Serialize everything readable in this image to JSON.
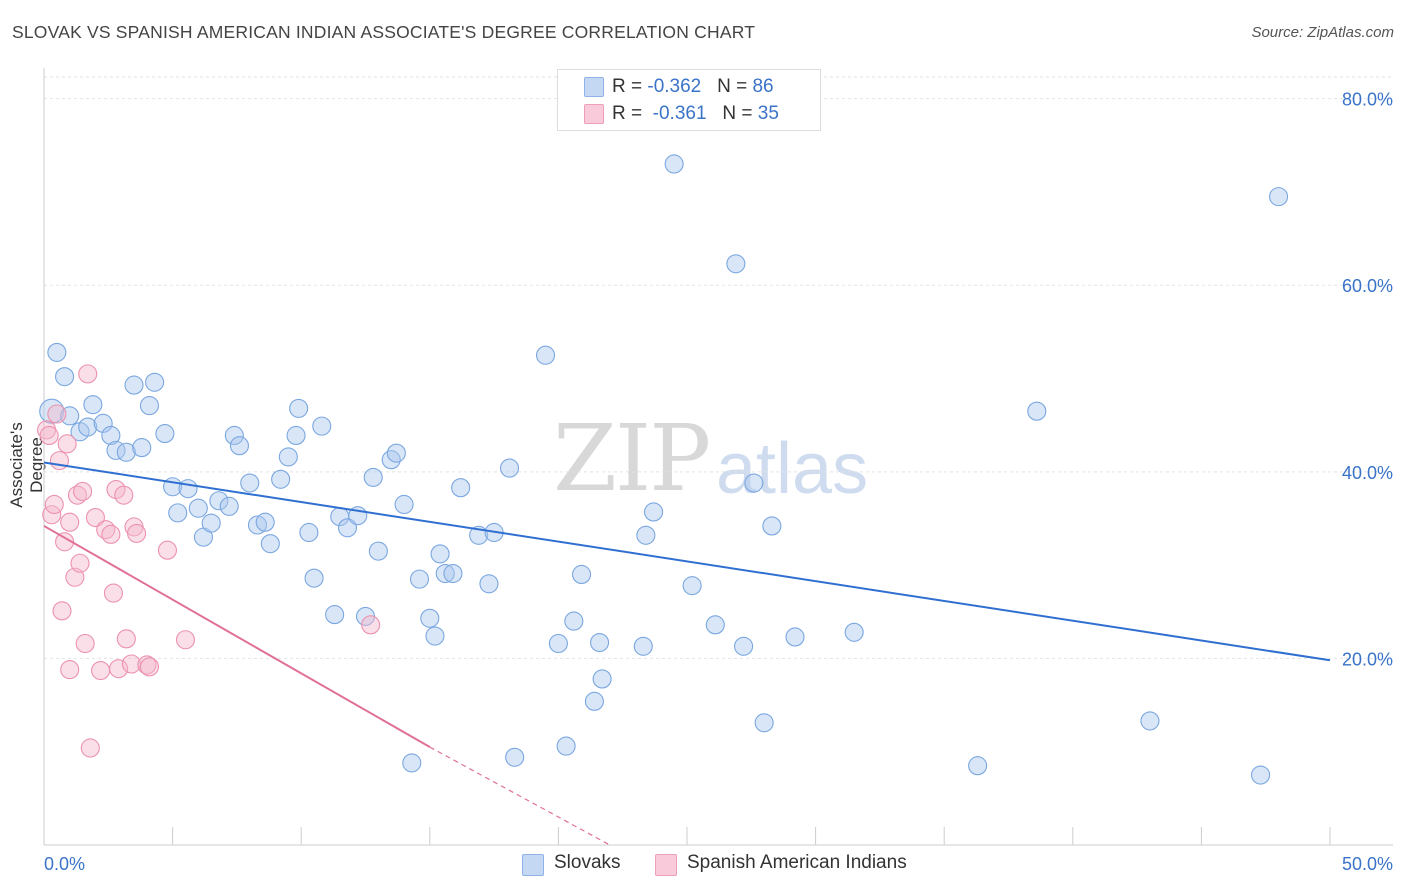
{
  "title": "SLOVAK VS SPANISH AMERICAN INDIAN ASSOCIATE'S DEGREE CORRELATION CHART",
  "source": "Source: ZipAtlas.com",
  "watermark": {
    "zip": "ZIP",
    "atlas": "atlas"
  },
  "legend_top": [
    {
      "r_label": "R = ",
      "r_value": "-0.362",
      "n_label": "N = ",
      "n_value": "86",
      "color": "#aac8f0"
    },
    {
      "r_label": "R = ",
      "r_value": "-0.361",
      "n_label": "N = ",
      "n_value": "35",
      "color": "#f5b8cb"
    }
  ],
  "legend_bottom": [
    {
      "label": "Slovaks",
      "color": "#aac8f0"
    },
    {
      "label": "Spanish American Indians",
      "color": "#f5b8cb"
    }
  ],
  "chart_data": {
    "type": "scatter",
    "ylabel": "Associate's Degree",
    "xlim": [
      0,
      50
    ],
    "ylim": [
      0,
      82
    ],
    "x_tick_labels": [
      "0.0%",
      "50.0%"
    ],
    "y_ticks": [
      20,
      40,
      60,
      80
    ],
    "y_tick_labels": [
      "20.0%",
      "40.0%",
      "60.0%",
      "80.0%"
    ],
    "grid": true,
    "series": [
      {
        "name": "Slovaks",
        "color": "#7aa7e0",
        "fill": "#aac8f0",
        "trend": {
          "x": [
            0,
            50
          ],
          "y": [
            41.0,
            19.8
          ],
          "color": "#2f6fd0"
        },
        "points": [
          [
            0.3,
            46.5
          ],
          [
            0.5,
            52.8
          ],
          [
            0.8,
            50.2
          ],
          [
            1.0,
            46.0
          ],
          [
            1.4,
            44.3
          ],
          [
            1.7,
            44.8
          ],
          [
            1.9,
            47.2
          ],
          [
            2.3,
            45.2
          ],
          [
            2.6,
            43.9
          ],
          [
            2.8,
            42.3
          ],
          [
            3.2,
            42.1
          ],
          [
            3.5,
            49.3
          ],
          [
            3.8,
            42.6
          ],
          [
            4.1,
            47.1
          ],
          [
            4.3,
            49.6
          ],
          [
            4.7,
            44.1
          ],
          [
            5.0,
            38.4
          ],
          [
            5.2,
            35.6
          ],
          [
            5.6,
            38.2
          ],
          [
            6.0,
            36.1
          ],
          [
            6.2,
            33.0
          ],
          [
            6.5,
            34.5
          ],
          [
            6.8,
            36.9
          ],
          [
            7.2,
            36.3
          ],
          [
            7.4,
            43.9
          ],
          [
            7.6,
            42.8
          ],
          [
            8.0,
            38.8
          ],
          [
            8.3,
            34.3
          ],
          [
            8.6,
            34.6
          ],
          [
            8.8,
            32.3
          ],
          [
            9.2,
            39.2
          ],
          [
            9.5,
            41.6
          ],
          [
            9.8,
            43.9
          ],
          [
            9.9,
            46.8
          ],
          [
            10.3,
            33.5
          ],
          [
            10.5,
            28.6
          ],
          [
            10.8,
            44.9
          ],
          [
            11.3,
            24.7
          ],
          [
            11.5,
            35.2
          ],
          [
            11.8,
            34.0
          ],
          [
            12.2,
            35.3
          ],
          [
            12.5,
            24.5
          ],
          [
            12.8,
            39.4
          ],
          [
            13.0,
            31.5
          ],
          [
            13.5,
            41.3
          ],
          [
            13.7,
            42.0
          ],
          [
            14.0,
            36.5
          ],
          [
            14.3,
            8.8
          ],
          [
            14.6,
            28.5
          ],
          [
            15.0,
            24.3
          ],
          [
            15.2,
            22.4
          ],
          [
            15.4,
            31.2
          ],
          [
            15.6,
            29.1
          ],
          [
            15.9,
            29.1
          ],
          [
            16.2,
            38.3
          ],
          [
            16.9,
            33.2
          ],
          [
            17.3,
            28.0
          ],
          [
            17.5,
            33.5
          ],
          [
            18.1,
            40.4
          ],
          [
            18.3,
            9.4
          ],
          [
            19.5,
            52.5
          ],
          [
            20.0,
            21.6
          ],
          [
            20.3,
            10.6
          ],
          [
            20.6,
            24.0
          ],
          [
            20.9,
            29.0
          ],
          [
            21.4,
            15.4
          ],
          [
            21.6,
            21.7
          ],
          [
            21.7,
            17.8
          ],
          [
            23.3,
            21.3
          ],
          [
            23.4,
            33.2
          ],
          [
            23.7,
            35.7
          ],
          [
            24.5,
            73.0
          ],
          [
            25.2,
            27.8
          ],
          [
            26.1,
            23.6
          ],
          [
            26.9,
            62.3
          ],
          [
            27.2,
            21.3
          ],
          [
            27.6,
            38.8
          ],
          [
            28.0,
            13.1
          ],
          [
            28.3,
            34.2
          ],
          [
            29.2,
            22.3
          ],
          [
            31.5,
            22.8
          ],
          [
            38.6,
            46.5
          ],
          [
            36.3,
            8.5
          ],
          [
            43.0,
            13.3
          ],
          [
            47.3,
            7.5
          ],
          [
            48.0,
            69.5
          ]
        ]
      },
      {
        "name": "Spanish American Indians",
        "color": "#ec92ae",
        "fill": "#f5b8cb",
        "trend": {
          "x": [
            0,
            15
          ],
          "y": [
            34.2,
            10.5
          ],
          "color": "#e07099",
          "dashed_extension": {
            "x": [
              15,
              22
            ],
            "y": [
              10.5,
              0
            ]
          }
        },
        "points": [
          [
            0.1,
            44.5
          ],
          [
            0.2,
            43.9
          ],
          [
            0.3,
            35.4
          ],
          [
            0.4,
            36.5
          ],
          [
            0.5,
            46.2
          ],
          [
            0.6,
            41.2
          ],
          [
            0.8,
            32.5
          ],
          [
            0.9,
            43.0
          ],
          [
            1.0,
            18.8
          ],
          [
            1.0,
            34.6
          ],
          [
            1.2,
            28.7
          ],
          [
            1.3,
            37.5
          ],
          [
            1.4,
            30.2
          ],
          [
            1.5,
            37.9
          ],
          [
            1.6,
            21.6
          ],
          [
            1.7,
            50.5
          ],
          [
            1.8,
            10.4
          ],
          [
            2.0,
            35.1
          ],
          [
            2.2,
            18.7
          ],
          [
            2.4,
            33.8
          ],
          [
            2.6,
            33.3
          ],
          [
            2.7,
            27.0
          ],
          [
            2.8,
            38.1
          ],
          [
            2.9,
            18.9
          ],
          [
            3.1,
            37.5
          ],
          [
            3.2,
            22.1
          ],
          [
            3.4,
            19.4
          ],
          [
            3.5,
            34.1
          ],
          [
            3.6,
            33.4
          ],
          [
            4.0,
            19.3
          ],
          [
            4.1,
            19.1
          ],
          [
            4.8,
            31.6
          ],
          [
            5.5,
            22.0
          ],
          [
            12.7,
            23.6
          ],
          [
            0.7,
            25.1
          ]
        ]
      }
    ]
  }
}
